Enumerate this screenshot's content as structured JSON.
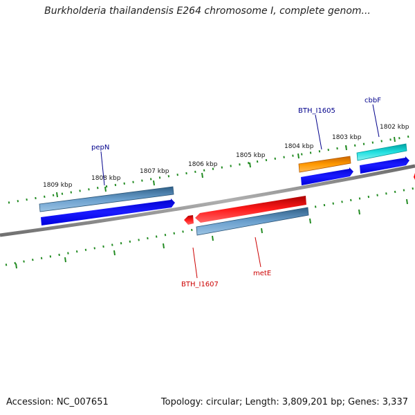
{
  "title": "Burkholderia thailandensis E264 chromosome I, complete genom...",
  "footer": {
    "accession": "Accession: NC_007651",
    "summary": "Topology: circular; Length: 3,809,201 bp; Genes: 3,337"
  },
  "kbp_ticks": [
    "1809 kbp",
    "1808 kbp",
    "1807 kbp",
    "1806 kbp",
    "1805 kbp",
    "1804 kbp",
    "1803 kbp",
    "1802 kbp"
  ],
  "genes": {
    "forward": [
      "pepN",
      "BTH_I1605",
      "cbbF"
    ],
    "reverse": [
      "BTH_I1607",
      "metE"
    ]
  },
  "colors": {
    "backbone": "#808080",
    "forward_label": "#00008b",
    "reverse_label": "#cc0000",
    "tick": "#228b22",
    "steel_blue": "#4682b4",
    "blue": "#0000ff",
    "red": "#ff0000",
    "orange": "#ff8c00",
    "cyan": "#00ced1"
  }
}
